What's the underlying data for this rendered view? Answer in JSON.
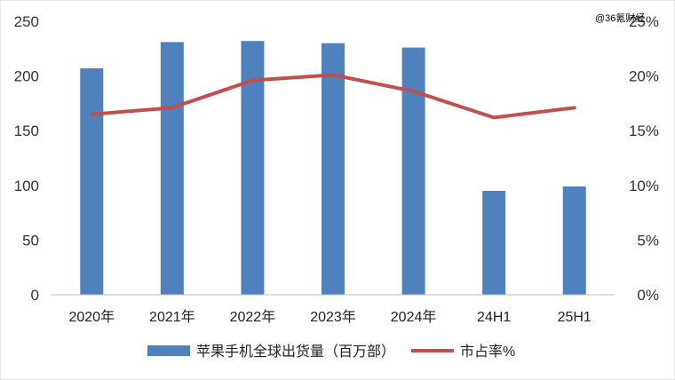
{
  "watermark": "@36氪财经",
  "chart_data": {
    "type": "bar",
    "title": "",
    "categories": [
      "2020年",
      "2021年",
      "2022年",
      "2023年",
      "2024年",
      "24H1",
      "25H1"
    ],
    "series": [
      {
        "name": "苹果手机全球出货量（百万部）",
        "type": "bar",
        "axis": "left",
        "color": "#4f81bd",
        "values": [
          207,
          231,
          232,
          230,
          226,
          95,
          99
        ]
      },
      {
        "name": "市占率%",
        "type": "line",
        "axis": "right",
        "color": "#c0504d",
        "values": [
          16.5,
          17.1,
          19.6,
          20.1,
          18.6,
          16.2,
          17.1
        ]
      }
    ],
    "y_left": {
      "min": 0,
      "max": 250,
      "ticks": [
        "0",
        "50",
        "100",
        "150",
        "200",
        "250"
      ]
    },
    "y_right": {
      "min": 0,
      "max": 25,
      "ticks": [
        "0%",
        "5%",
        "10%",
        "15%",
        "20%",
        "25%"
      ]
    },
    "grid": false,
    "legend": "bottom"
  }
}
